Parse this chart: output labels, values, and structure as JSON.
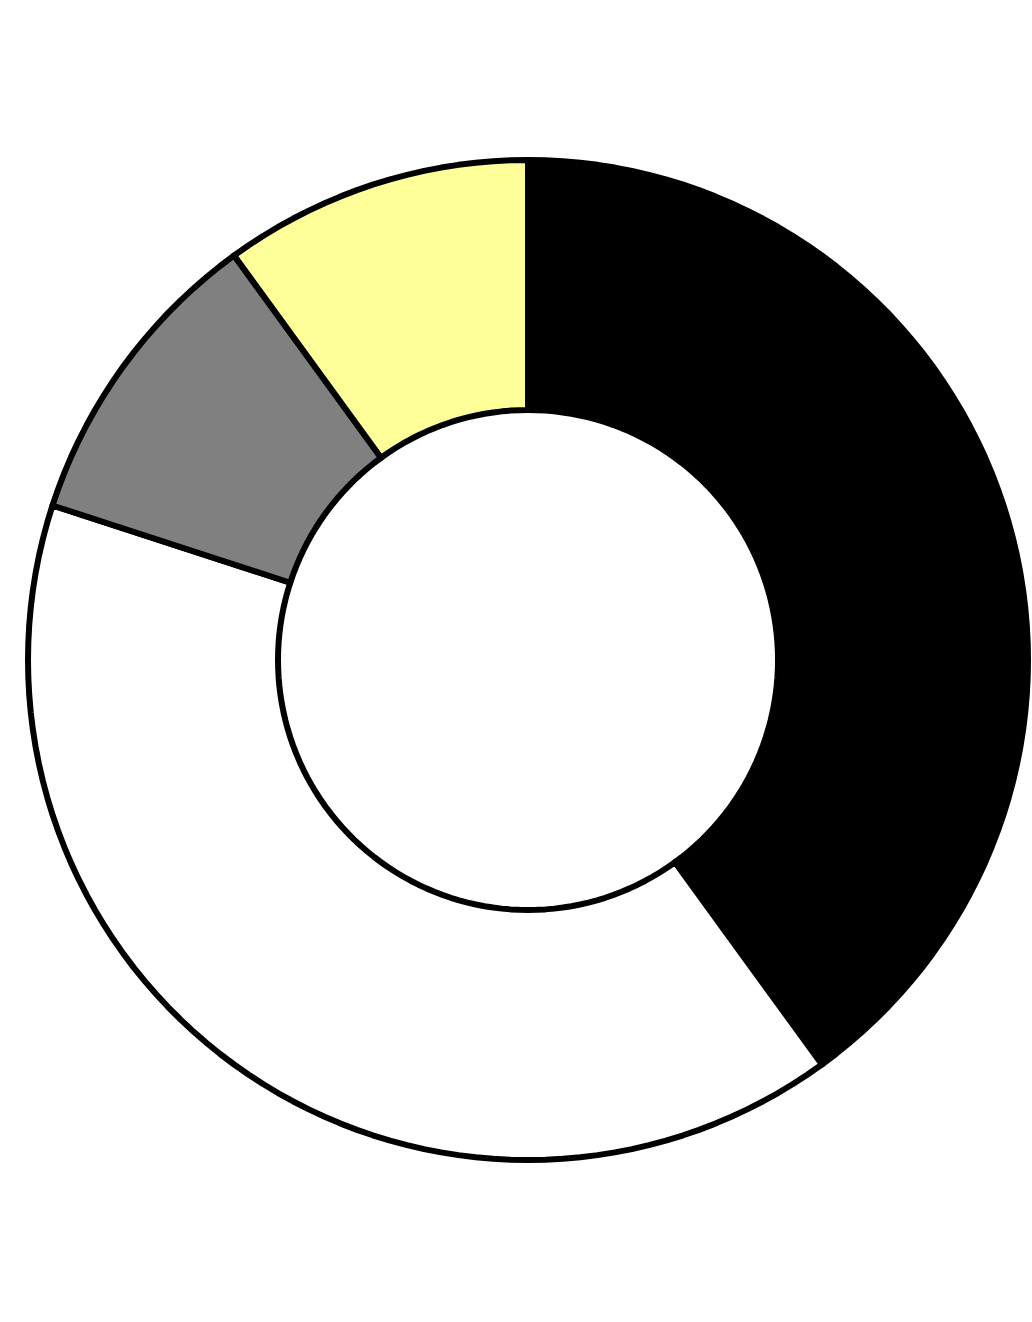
{
  "chart_data": {
    "type": "donut",
    "categories": [
      null,
      null,
      null,
      null
    ],
    "values": [
      40,
      40,
      10,
      10
    ],
    "colors": [
      "#000000",
      "#ffffff",
      "#808080",
      "#ffff99"
    ]
  }
}
